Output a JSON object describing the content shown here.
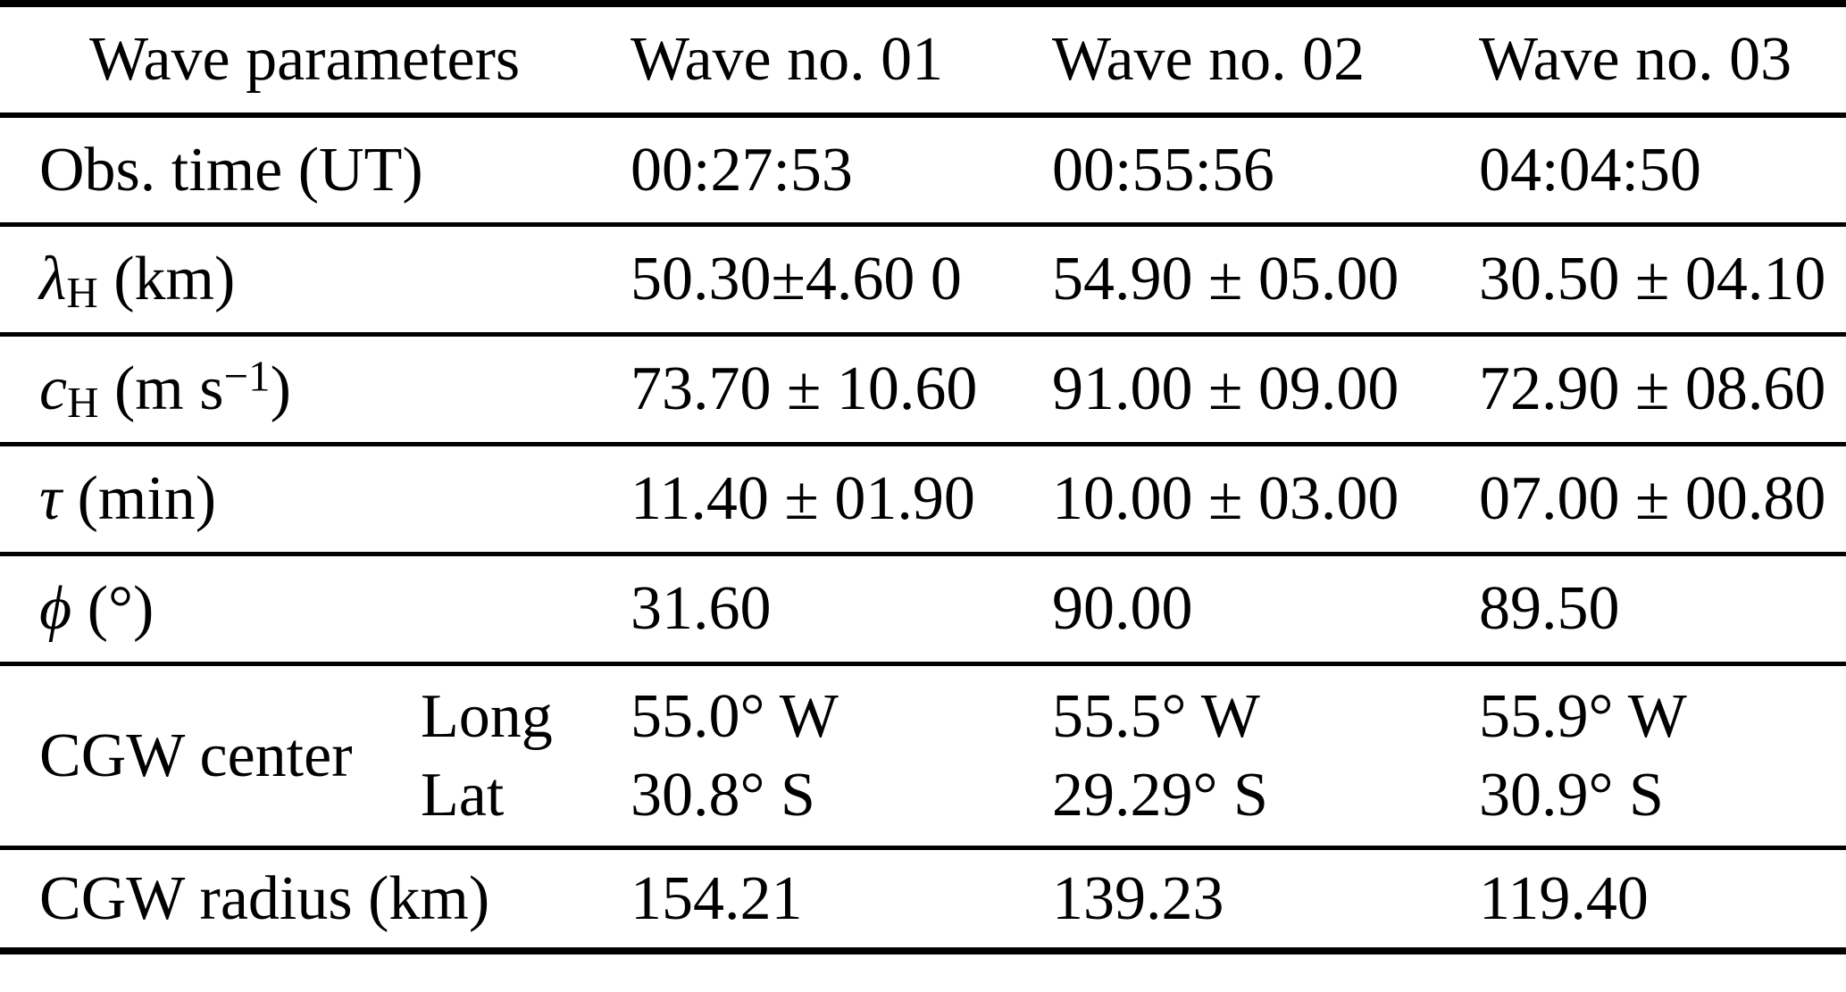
{
  "header": {
    "param": "Wave parameters",
    "waves": [
      "Wave no. 01",
      "Wave no. 02",
      "Wave no. 03"
    ]
  },
  "rows": {
    "obs_time": {
      "label": "Obs. time (UT)",
      "values": [
        "00:27:53",
        "00:55:56",
        "04:04:50"
      ]
    },
    "lambda_h": {
      "symbol": "λ",
      "sub": "H",
      "unit": " (km)",
      "values": [
        "50.30±4.60 0",
        "54.90 ± 05.00",
        "30.50 ± 04.10"
      ]
    },
    "c_h": {
      "symbol": "c",
      "sub": "H",
      "unit_pre": " (m s",
      "sup": "−1",
      "unit_post": ")",
      "values": [
        "73.70 ± 10.60",
        "91.00 ± 09.00",
        "72.90 ± 08.60"
      ]
    },
    "tau": {
      "symbol": "τ",
      "unit": " (min)",
      "values": [
        "11.40 ± 01.90",
        "10.00 ± 03.00",
        "07.00 ± 00.80"
      ]
    },
    "phi": {
      "symbol": "ϕ",
      "unit": " (°)",
      "values": [
        "31.60",
        "90.00",
        "89.50"
      ]
    },
    "cgw_center": {
      "label": "CGW center",
      "sublabels": [
        "Long",
        "Lat"
      ],
      "long_values": [
        "55.0° W",
        "55.5° W",
        "55.9° W"
      ],
      "lat_values": [
        "30.8° S",
        "29.29° S",
        "30.9° S"
      ]
    },
    "cgw_radius": {
      "label": "CGW radius (km)",
      "values": [
        "154.21",
        "139.23",
        "119.40"
      ]
    }
  }
}
